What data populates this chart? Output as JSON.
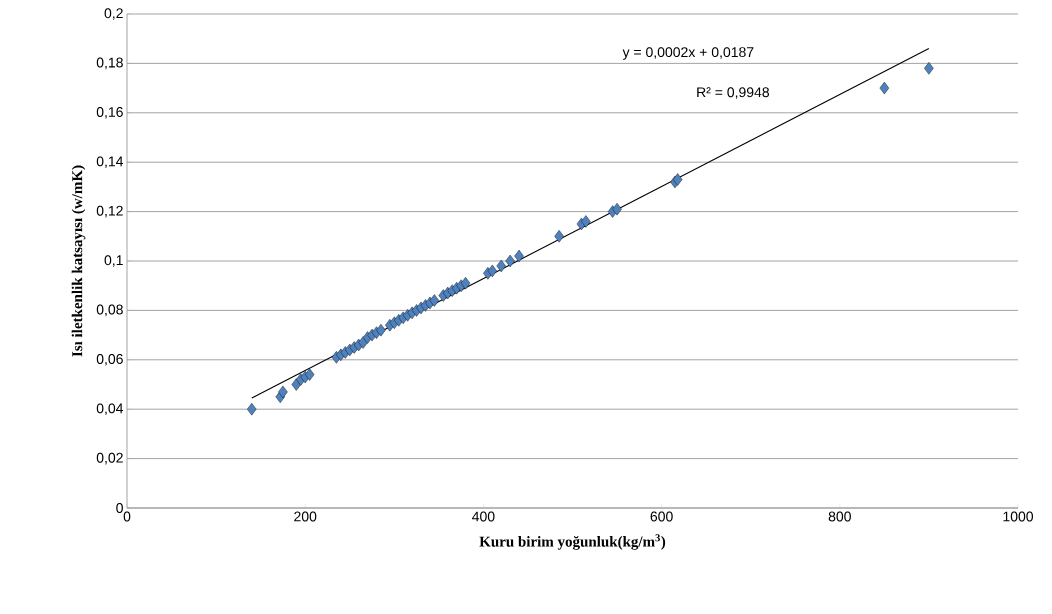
{
  "chart_data": {
    "type": "scatter",
    "xlabel": "Kuru birim yoğunluk(kg/m$^{3}$)",
    "ylabel": "Isı iletkenlik katsayısı (w/mK)",
    "annotations": [
      "y = 0,0002x + 0,0187",
      "R² = 0,9948"
    ],
    "xlim": [
      0,
      1000
    ],
    "xticks": [
      0,
      200,
      400,
      600,
      800,
      1000
    ],
    "ylim": [
      0,
      0.2
    ],
    "yticks": [
      {
        "value": 0,
        "label": "0"
      },
      {
        "value": 0.02,
        "label": "0,02"
      },
      {
        "value": 0.04,
        "label": "0,04"
      },
      {
        "value": 0.06,
        "label": "0,06"
      },
      {
        "value": 0.08,
        "label": "0,08"
      },
      {
        "value": 0.1,
        "label": "0,1"
      },
      {
        "value": 0.12,
        "label": "0,12"
      },
      {
        "value": 0.14,
        "label": "0,14"
      },
      {
        "value": 0.16,
        "label": "0,16"
      },
      {
        "value": 0.18,
        "label": "0,18"
      },
      {
        "value": 0.2,
        "label": "0,2"
      }
    ],
    "grid": "y",
    "series": [
      {
        "color": "#4f81bd",
        "marker": "diamond",
        "x": [
          140,
          172,
          175,
          190,
          195,
          200,
          205,
          235,
          240,
          245,
          250,
          255,
          260,
          265,
          270,
          275,
          280,
          285,
          295,
          300,
          305,
          310,
          315,
          320,
          325,
          330,
          335,
          340,
          345,
          355,
          360,
          365,
          370,
          375,
          380,
          405,
          410,
          420,
          430,
          440,
          485,
          510,
          515,
          545,
          550,
          615,
          618,
          850,
          900
        ],
        "values": [
          0.04,
          0.045,
          0.047,
          0.05,
          0.052,
          0.053,
          0.054,
          0.061,
          0.062,
          0.063,
          0.064,
          0.065,
          0.066,
          0.067,
          0.069,
          0.07,
          0.071,
          0.072,
          0.074,
          0.075,
          0.076,
          0.077,
          0.078,
          0.079,
          0.08,
          0.081,
          0.082,
          0.083,
          0.084,
          0.086,
          0.087,
          0.088,
          0.089,
          0.09,
          0.091,
          0.095,
          0.096,
          0.098,
          0.1,
          0.102,
          0.11,
          0.115,
          0.116,
          0.12,
          0.121,
          0.132,
          0.133,
          0.17,
          0.178
        ]
      },
      {
        "type": "line",
        "color": "#000000",
        "marker": "none",
        "x": [
          140,
          900
        ],
        "values": [
          0.0445,
          0.186
        ]
      }
    ]
  }
}
